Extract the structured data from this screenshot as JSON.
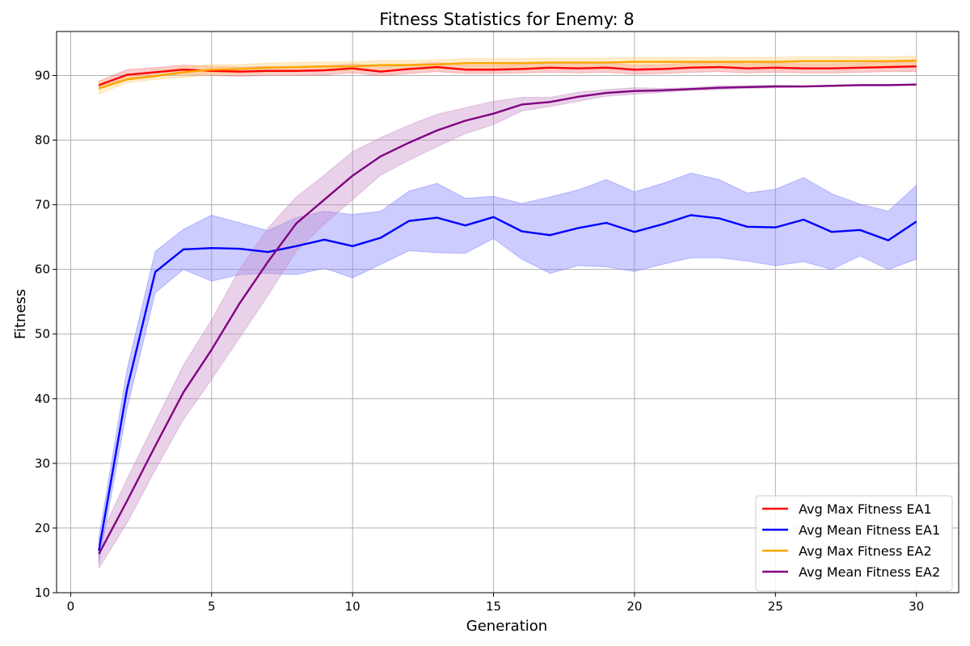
{
  "chart_data": {
    "type": "line",
    "title": "Fitness Statistics for Enemy: 8",
    "xlabel": "Generation",
    "ylabel": "Fitness",
    "xlim": [
      -0.5,
      31.5
    ],
    "ylim": [
      10,
      96.8
    ],
    "xticks": [
      0,
      5,
      10,
      15,
      20,
      25,
      30
    ],
    "yticks": [
      10,
      20,
      30,
      40,
      50,
      60,
      70,
      80,
      90
    ],
    "grid": true,
    "legend_position": "bottom-right",
    "x": [
      1,
      2,
      3,
      4,
      5,
      6,
      7,
      8,
      9,
      10,
      11,
      12,
      13,
      14,
      15,
      16,
      17,
      18,
      19,
      20,
      21,
      22,
      23,
      24,
      25,
      26,
      27,
      28,
      29,
      30
    ],
    "series": [
      {
        "name": "Avg Max Fitness EA1",
        "color": "#ff0000",
        "band_color": "#f08080",
        "values": [
          88.5,
          90.1,
          90.5,
          90.9,
          90.7,
          90.6,
          90.7,
          90.7,
          90.8,
          91.1,
          90.6,
          91.0,
          91.3,
          90.9,
          90.9,
          91.0,
          91.2,
          91.1,
          91.2,
          90.9,
          91.0,
          91.2,
          91.3,
          91.1,
          91.2,
          91.1,
          91.1,
          91.2,
          91.3,
          91.4
        ],
        "lower": [
          87.9,
          89.3,
          89.9,
          90.2,
          90.0,
          89.9,
          90.0,
          90.0,
          90.1,
          90.4,
          90.0,
          90.3,
          90.6,
          90.3,
          90.3,
          90.4,
          90.5,
          90.4,
          90.5,
          90.2,
          90.3,
          90.5,
          90.6,
          90.4,
          90.5,
          90.4,
          90.4,
          90.5,
          90.6,
          90.6
        ],
        "upper": [
          89.1,
          90.9,
          91.2,
          91.6,
          91.4,
          91.3,
          91.4,
          91.4,
          91.5,
          91.8,
          91.3,
          91.7,
          92.0,
          91.6,
          91.6,
          91.7,
          91.9,
          91.8,
          91.9,
          91.6,
          91.7,
          91.9,
          92.0,
          91.8,
          91.9,
          91.8,
          91.8,
          91.9,
          92.0,
          92.2
        ]
      },
      {
        "name": "Avg Mean Fitness EA1",
        "color": "#0000ff",
        "band_color": "#8080ff",
        "values": [
          16.5,
          41.5,
          59.6,
          63.1,
          63.3,
          63.2,
          62.7,
          63.6,
          64.6,
          63.6,
          64.9,
          67.5,
          68.0,
          66.8,
          68.1,
          65.9,
          65.3,
          66.4,
          67.2,
          65.8,
          67.0,
          68.4,
          67.9,
          66.6,
          66.5,
          67.7,
          65.8,
          66.1,
          64.5,
          67.4
        ],
        "lower": [
          14.5,
          38.5,
          56.4,
          60.0,
          58.2,
          59.2,
          59.4,
          59.2,
          60.2,
          58.7,
          60.8,
          62.9,
          62.6,
          62.5,
          64.8,
          61.6,
          59.4,
          60.6,
          60.4,
          59.7,
          60.8,
          61.8,
          61.8,
          61.3,
          60.6,
          61.2,
          60.0,
          62.1,
          60.0,
          61.6
        ],
        "upper": [
          18.5,
          44.5,
          62.8,
          66.2,
          68.4,
          67.2,
          66.0,
          68.0,
          69.0,
          68.5,
          69.0,
          72.1,
          73.3,
          71.0,
          71.3,
          70.2,
          71.2,
          72.3,
          73.9,
          72.0,
          73.3,
          74.9,
          73.9,
          71.8,
          72.4,
          74.2,
          71.7,
          70.1,
          69.0,
          73.0
        ]
      },
      {
        "name": "Avg Max Fitness EA2",
        "color": "#ffa500",
        "band_color": "#ffd27f",
        "values": [
          88.0,
          89.4,
          89.9,
          90.5,
          90.9,
          91.0,
          91.2,
          91.3,
          91.4,
          91.4,
          91.6,
          91.6,
          91.7,
          91.9,
          91.9,
          91.9,
          92.0,
          92.0,
          92.0,
          92.1,
          92.1,
          92.1,
          92.1,
          92.1,
          92.1,
          92.2,
          92.2,
          92.2,
          92.2,
          92.3
        ],
        "lower": [
          87.1,
          88.9,
          89.4,
          89.7,
          90.1,
          90.3,
          90.5,
          90.6,
          90.7,
          90.7,
          90.9,
          90.9,
          91.0,
          91.2,
          91.2,
          91.2,
          91.3,
          91.3,
          91.3,
          91.4,
          91.4,
          91.4,
          91.4,
          91.4,
          91.4,
          91.5,
          91.5,
          91.5,
          91.5,
          91.5
        ],
        "upper": [
          88.9,
          89.9,
          90.5,
          91.3,
          91.7,
          91.7,
          91.9,
          92.0,
          92.1,
          92.1,
          92.3,
          92.3,
          92.4,
          92.6,
          92.6,
          92.6,
          92.7,
          92.7,
          92.7,
          92.8,
          92.8,
          92.8,
          92.8,
          92.8,
          92.8,
          92.9,
          92.9,
          92.9,
          92.9,
          93.0
        ]
      },
      {
        "name": "Avg Mean Fitness EA2",
        "color": "#800080",
        "band_color": "#c88fc8",
        "values": [
          16.0,
          24.2,
          32.7,
          41.0,
          47.6,
          54.8,
          61.2,
          67.1,
          70.8,
          74.5,
          77.5,
          79.6,
          81.5,
          83.0,
          84.1,
          85.5,
          85.9,
          86.7,
          87.3,
          87.6,
          87.7,
          87.9,
          88.1,
          88.2,
          88.3,
          88.3,
          88.4,
          88.5,
          88.5,
          88.6
        ],
        "lower": [
          13.8,
          20.8,
          29.0,
          36.8,
          43.0,
          49.5,
          56.0,
          62.8,
          67.0,
          70.8,
          74.6,
          76.9,
          79.0,
          81.0,
          82.4,
          84.5,
          85.2,
          86.0,
          86.8,
          87.1,
          87.4,
          87.7,
          87.8,
          88.0,
          88.1,
          88.2,
          88.3,
          88.4,
          88.4,
          88.5
        ],
        "upper": [
          18.2,
          27.6,
          36.4,
          45.2,
          52.2,
          60.1,
          66.4,
          71.2,
          74.6,
          78.2,
          80.4,
          82.3,
          84.0,
          85.0,
          86.0,
          86.6,
          86.6,
          87.4,
          87.8,
          88.1,
          88.0,
          88.1,
          88.4,
          88.4,
          88.5,
          88.4,
          88.5,
          88.6,
          88.6,
          88.7
        ]
      }
    ]
  }
}
